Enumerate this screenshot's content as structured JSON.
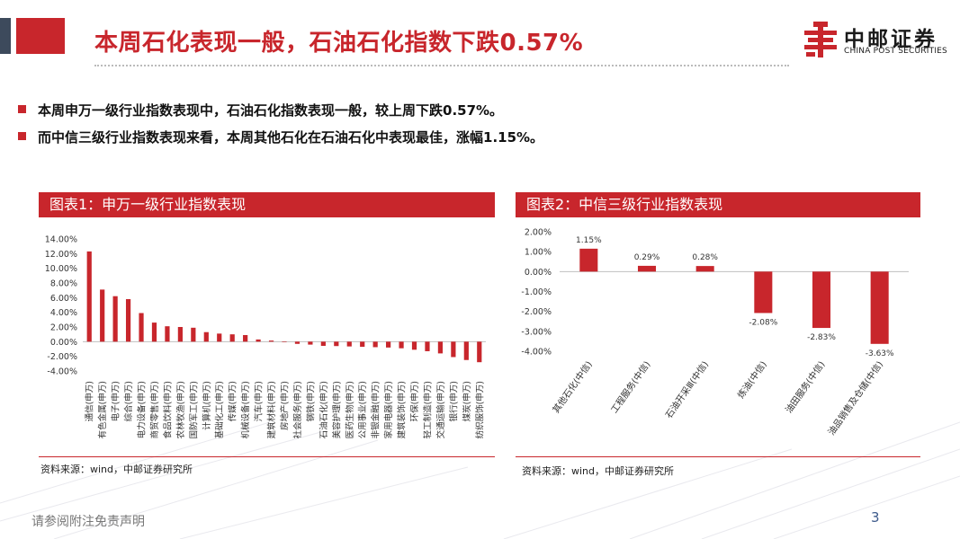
{
  "header": {
    "title": "本周石化表现一般，石油石化指数下跌0.57%",
    "logo_cn": "中邮证券",
    "logo_en": "CHINA POST SECURITIES"
  },
  "bullets": [
    "本周申万一级行业指数表现中，石油石化指数表现一般，较上周下跌0.57%。",
    "而中信三级行业指数表现来看，本周其他石化在石油石化中表现最佳，涨幅1.15%。"
  ],
  "panels": {
    "left_title": "图表1：申万一级行业指数表现",
    "right_title": "图表2：中信三级行业指数表现",
    "left_source": "资料来源：wind，中邮证券研究所",
    "right_source": "资料来源：wind，中邮证券研究所"
  },
  "footer": {
    "disclaimer": "请参阅附注免责声明",
    "page": "3"
  },
  "colors": {
    "accent": "#c8262c",
    "dark": "#3d4a5c",
    "page_number": "#3e5b8c"
  },
  "chart_data": [
    {
      "type": "bar",
      "title": "图表1：申万一级行业指数表现",
      "ylim": [
        -4,
        14
      ],
      "yticks": [
        14,
        12,
        10,
        8,
        6,
        4,
        2,
        0,
        -2,
        -4
      ],
      "ytick_labels": [
        "14.00%",
        "12.00%",
        "10.00%",
        "8.00%",
        "6.00%",
        "4.00%",
        "2.00%",
        "0.00%",
        "-2.00%",
        "-4.00%"
      ],
      "categories": [
        "通信(申万)",
        "有色金属(申万)",
        "电子(申万)",
        "综合(申万)",
        "电力设备(申万)",
        "商贸零售(申万)",
        "食品饮料(申万)",
        "农林牧渔(申万)",
        "国防军工(申万)",
        "计算机(申万)",
        "基础化工(申万)",
        "传媒(申万)",
        "机械设备(申万)",
        "汽车(申万)",
        "建筑材料(申万)",
        "房地产(申万)",
        "社会服务(申万)",
        "钢铁(申万)",
        "石油石化(申万)",
        "美容护理(申万)",
        "医药生物(申万)",
        "公用事业(申万)",
        "非银金融(申万)",
        "家用电器(申万)",
        "建筑装饰(申万)",
        "环保(申万)",
        "轻工制造(申万)",
        "交通运输(申万)",
        "银行(申万)",
        "煤炭(申万)",
        "纺织服饰(申万)"
      ],
      "values": [
        12.3,
        7.1,
        6.2,
        5.8,
        3.9,
        2.6,
        2.1,
        2.0,
        1.9,
        1.3,
        1.1,
        1.0,
        0.9,
        0.3,
        0.15,
        -0.05,
        -0.3,
        -0.4,
        -0.57,
        -0.6,
        -0.65,
        -0.7,
        -0.75,
        -0.8,
        -0.9,
        -1.1,
        -1.3,
        -1.6,
        -2.1,
        -2.5,
        -2.8
      ],
      "color": "#c8262c",
      "grid": false
    },
    {
      "type": "bar",
      "title": "图表2：中信三级行业指数表现",
      "ylim": [
        -4,
        2
      ],
      "yticks": [
        2,
        1,
        0,
        -1,
        -2,
        -3,
        -4
      ],
      "ytick_labels": [
        "2.00%",
        "1.00%",
        "0.00%",
        "-1.00%",
        "-2.00%",
        "-3.00%",
        "-4.00%"
      ],
      "categories": [
        "其他石化(中信)",
        "工程服务(中信)",
        "石油开采Ⅲ(中信)",
        "炼油(中信)",
        "油田服务(中信)",
        "油品销售及仓储(中信)"
      ],
      "values": [
        1.15,
        0.29,
        0.28,
        -2.08,
        -2.83,
        -3.63
      ],
      "data_labels": [
        "1.15%",
        "0.29%",
        "0.28%",
        "-2.08%",
        "-2.83%",
        "-3.63%"
      ],
      "color": "#c8262c",
      "grid": false
    }
  ]
}
